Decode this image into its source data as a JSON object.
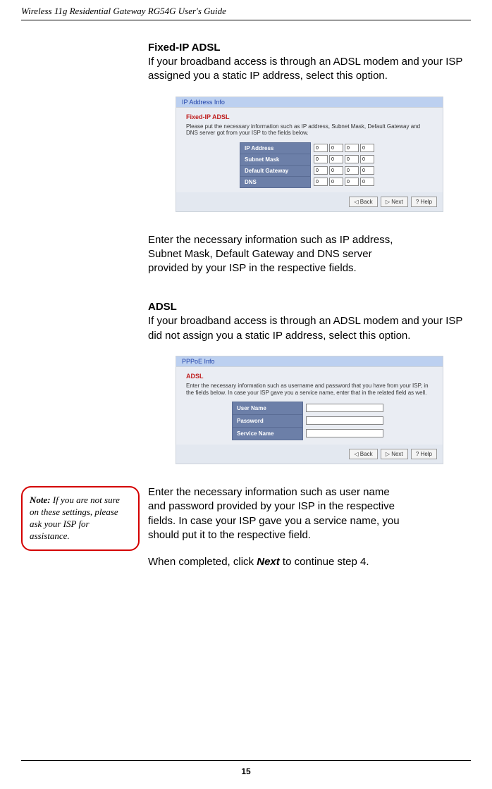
{
  "header": "Wireless 11g Residential Gateway RG54G User's Guide",
  "page_number": "15",
  "sec1": {
    "title": "Fixed-IP ADSL",
    "intro": "If your broadband access is through an ADSL modem and your ISP assigned you a static IP address, select this option.",
    "outro_l1": "Enter the necessary information such as IP address,",
    "outro_l2": "Subnet Mask, Default Gateway and DNS server",
    "outro_l3": "provided by your ISP in the respective fields."
  },
  "panel1": {
    "bar": "IP Address Info",
    "sub": "Fixed-IP ADSL",
    "desc": "Please put the necessary information such as IP address, Subnet Mask, Default Gateway and DNS server got from your ISP to the fields below.",
    "rows": [
      "IP Address",
      "Subnet Mask",
      "Default Gateway",
      "DNS"
    ],
    "val": "0"
  },
  "sec2": {
    "title": "ADSL",
    "intro": "If your broadband access is through an ADSL modem and your ISP did not assign you a static IP address, select this option.",
    "outro_l1": "Enter the necessary information such as user name",
    "outro_l2": "and password provided by your ISP in the respective",
    "outro_l3": "fields.  In case your ISP gave you a service name, you",
    "outro_l4": "should put it to the respective field.",
    "final_a": "When completed, click ",
    "final_b": "Next",
    "final_c": " to continue step 4."
  },
  "panel2": {
    "bar": "PPPoE Info",
    "sub": "ADSL",
    "desc": "Enter the necessary information such as username and password that you have from your ISP, in the fields below. In case your ISP gave you a service name, enter that in the related field as well.",
    "rows": [
      "User Name",
      "Password",
      "Service Name"
    ]
  },
  "buttons": {
    "back": "◁ Back",
    "next": "▷ Next",
    "help": "? Help"
  },
  "note": {
    "label": "Note:",
    "text": " If you are not sure on these settings, please ask your ISP for assistance."
  }
}
